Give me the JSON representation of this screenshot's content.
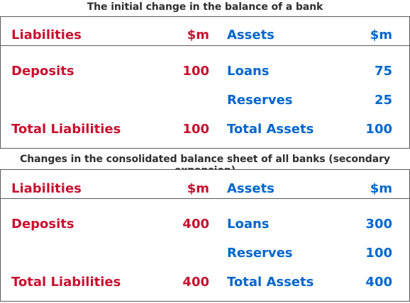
{
  "colors": {
    "liabilities": "#c8102e",
    "assets": "#0066cc",
    "border": "#5a5a5a",
    "caption": "#2f2f2f"
  },
  "table1": {
    "caption": "The initial change in the balance of a bank",
    "header": {
      "liab_label": "Liabilities",
      "liab_unit": "$m",
      "asset_label": "Assets",
      "asset_unit": "$m"
    },
    "rows": [
      {
        "liab_name": "Deposits",
        "liab_value": "100",
        "asset_name": "Loans",
        "asset_value": "75"
      },
      {
        "liab_name": "",
        "liab_value": "",
        "asset_name": "Reserves",
        "asset_value": "25"
      },
      {
        "liab_name": "Total Liabilities",
        "liab_value": "100",
        "asset_name": "Total Assets",
        "asset_value": "100"
      }
    ]
  },
  "table2": {
    "caption": "Changes in the consolidated balance sheet of all banks (secondary expansion)",
    "header": {
      "liab_label": "Liabilities",
      "liab_unit": "$m",
      "asset_label": "Assets",
      "asset_unit": "$m"
    },
    "rows": [
      {
        "liab_name": "Deposits",
        "liab_value": "400",
        "asset_name": "Loans",
        "asset_value": "300"
      },
      {
        "liab_name": "",
        "liab_value": "",
        "asset_name": "Reserves",
        "asset_value": "100"
      },
      {
        "liab_name": "Total Liabilities",
        "liab_value": "400",
        "asset_name": "Total Assets",
        "asset_value": "400"
      }
    ]
  }
}
